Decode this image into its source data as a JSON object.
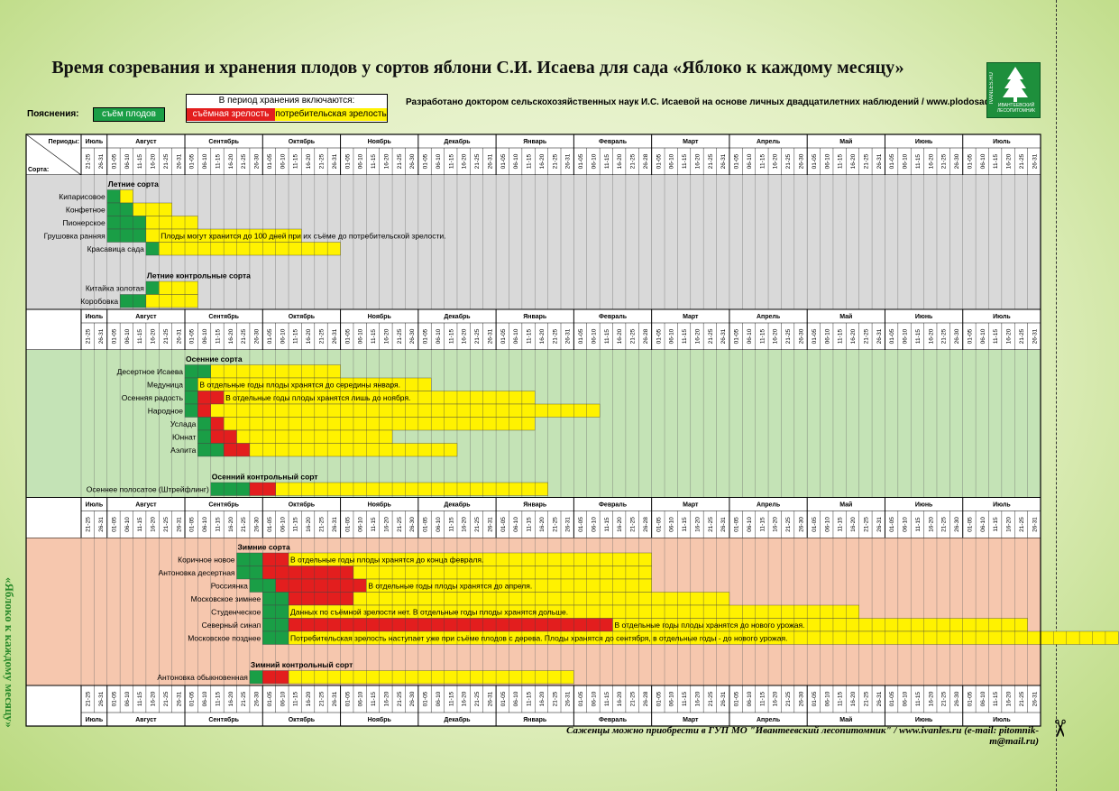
{
  "title": "Время созревания и хранения плодов у сортов яблони С.И. Исаева для сада «Яблоко к каждому месяцу»",
  "legend": {
    "caption": "Пояснения:",
    "harvest": "съём плодов",
    "storage_title": "В период хранения включаются:",
    "removable": "съёмная зрелость",
    "consumer": "потребительская зрелость"
  },
  "author_note": "Разработано доктором сельскохозяйственных наук И.С. Исаевой на основе личных двадцатилетних наблюдений / www.plodosad.ru",
  "logo": {
    "site": "IVANLES.RU",
    "name": "ИВАНТЕЕВСКИЙ ЛЕСОПИТОМНИК"
  },
  "footer": "Саженцы можно приобрести в ГУП МО \"Ивантеевский лесопитомник\" / www.ivanles.ru (e-mail: pitomnik-m@mail.ru)",
  "side_text": "«Яблоко к каждому месяцу»",
  "colors": {
    "harvest": "#1a9e46",
    "removable": "#e31e1e",
    "consumer": "#fff200",
    "summer_bg": "#d9d9d9",
    "autumn_bg": "#c4e3b6",
    "winter_bg": "#f6c7ae"
  },
  "chart_data": {
    "type": "table",
    "periods_label": "Периоды:",
    "sorts_label": "Сорта:",
    "months": [
      {
        "name": "Июль",
        "periods": [
          "21-25",
          "26-31"
        ]
      },
      {
        "name": "Август",
        "periods": [
          "01-05",
          "06-10",
          "11-15",
          "16-20",
          "21-25",
          "26-31"
        ]
      },
      {
        "name": "Сентябрь",
        "periods": [
          "01-05",
          "06-10",
          "11-15",
          "16-20",
          "21-25",
          "26-30"
        ]
      },
      {
        "name": "Октябрь",
        "periods": [
          "01-05",
          "06-10",
          "11-15",
          "16-20",
          "21-25",
          "26-31"
        ]
      },
      {
        "name": "Ноябрь",
        "periods": [
          "01-05",
          "06-10",
          "11-15",
          "16-20",
          "21-25",
          "26-30"
        ]
      },
      {
        "name": "Декабрь",
        "periods": [
          "01-05",
          "06-10",
          "11-15",
          "16-20",
          "21-25",
          "26-31"
        ]
      },
      {
        "name": "Январь",
        "periods": [
          "01-05",
          "06-10",
          "11-15",
          "16-20",
          "21-25",
          "26-31"
        ]
      },
      {
        "name": "Февраль",
        "periods": [
          "01-05",
          "06-10",
          "11-15",
          "16-20",
          "21-25",
          "26-28"
        ]
      },
      {
        "name": "Март",
        "periods": [
          "01-05",
          "06-10",
          "11-15",
          "16-20",
          "21-25",
          "26-31"
        ]
      },
      {
        "name": "Апрель",
        "periods": [
          "01-05",
          "06-10",
          "11-15",
          "16-20",
          "21-25",
          "26-30"
        ]
      },
      {
        "name": "Май",
        "periods": [
          "01-05",
          "06-10",
          "11-15",
          "16-20",
          "21-25",
          "26-31"
        ]
      },
      {
        "name": "Июнь",
        "periods": [
          "01-05",
          "06-10",
          "11-15",
          "16-20",
          "21-25",
          "26-30"
        ]
      },
      {
        "name": "Июль",
        "periods": [
          "01-05",
          "06-10",
          "11-15",
          "16-20",
          "21-25",
          "26-31"
        ]
      }
    ],
    "sections": [
      {
        "name": "summer",
        "rows": [
          {
            "type": "heading",
            "label": "Летние сорта",
            "start": 2
          },
          {
            "type": "variety",
            "name": "Кипарисовое",
            "harvest": [
              2,
              3
            ],
            "removable": null,
            "consumer": [
              3,
              4
            ]
          },
          {
            "type": "variety",
            "name": "Конфетное",
            "harvest": [
              2,
              4
            ],
            "removable": null,
            "consumer": [
              4,
              7
            ]
          },
          {
            "type": "variety",
            "name": "Пионерское",
            "harvest": [
              2,
              5
            ],
            "removable": null,
            "consumer": [
              5,
              9
            ]
          },
          {
            "type": "variety",
            "name": "Грушовка ранняя",
            "harvest": [
              2,
              5
            ],
            "removable": null,
            "consumer": [
              5,
              17
            ],
            "note": "Плоды могут хранится до 100 дней при их съёме до потребительской зрелости.",
            "note_start": 6
          },
          {
            "type": "variety",
            "name": "Красавица сада",
            "harvest": [
              5,
              6
            ],
            "removable": null,
            "consumer": [
              6,
              20
            ]
          },
          {
            "type": "blank"
          },
          {
            "type": "heading",
            "label": "Летние контрольные сорта",
            "start": 5
          },
          {
            "type": "variety",
            "name": "Китайка золотая",
            "harvest": [
              5,
              6
            ],
            "removable": null,
            "consumer": [
              6,
              9
            ]
          },
          {
            "type": "variety",
            "name": "Коробовка",
            "harvest": [
              3,
              5
            ],
            "removable": null,
            "consumer": [
              5,
              9
            ]
          }
        ]
      },
      {
        "name": "autumn",
        "rows": [
          {
            "type": "heading",
            "label": "Осенние сорта",
            "start": 8
          },
          {
            "type": "variety",
            "name": "Десертное Исаева",
            "harvest": [
              8,
              10
            ],
            "removable": null,
            "consumer": [
              10,
              20
            ]
          },
          {
            "type": "variety",
            "name": "Медуница",
            "harvest": [
              8,
              9
            ],
            "removable": null,
            "consumer": [
              9,
              27
            ],
            "note": "В отдельные годы плоды хранятся до середины января.",
            "note_start": 9
          },
          {
            "type": "variety",
            "name": "Осенняя радость",
            "harvest": [
              8,
              9
            ],
            "removable": [
              9,
              11
            ],
            "consumer": [
              11,
              35
            ],
            "note": "В отдельные годы плоды хранятся лишь до ноября.",
            "note_start": 11
          },
          {
            "type": "variety",
            "name": "Народное",
            "harvest": [
              8,
              9
            ],
            "removable": [
              9,
              10
            ],
            "consumer": [
              10,
              40
            ]
          },
          {
            "type": "variety",
            "name": "Услада",
            "harvest": [
              9,
              10
            ],
            "removable": [
              10,
              11
            ],
            "consumer": [
              11,
              35
            ]
          },
          {
            "type": "variety",
            "name": "Юннат",
            "harvest": [
              9,
              10
            ],
            "removable": [
              10,
              12
            ],
            "consumer": [
              12,
              24
            ]
          },
          {
            "type": "variety",
            "name": "Аэлита",
            "harvest": [
              9,
              11
            ],
            "removable": [
              11,
              13
            ],
            "consumer": [
              13,
              29
            ]
          },
          {
            "type": "blank"
          },
          {
            "type": "heading",
            "label": "Осенний контрольный сорт",
            "start": 10
          },
          {
            "type": "variety",
            "name": "Осеннее полосатое (Штрейфлинг)",
            "harvest": [
              10,
              13
            ],
            "removable": [
              13,
              15
            ],
            "consumer": [
              15,
              36
            ]
          }
        ]
      },
      {
        "name": "winter",
        "rows": [
          {
            "type": "heading",
            "label": "Зимние сорта",
            "start": 12
          },
          {
            "type": "variety",
            "name": "Коричное новое",
            "harvest": [
              12,
              14
            ],
            "removable": [
              14,
              16
            ],
            "consumer": [
              16,
              44
            ],
            "note": "В отдельные годы плоды хранятся до конца февраля.",
            "note_start": 16
          },
          {
            "type": "variety",
            "name": "Антоновка десертная",
            "harvest": [
              12,
              14
            ],
            "removable": [
              14,
              21
            ],
            "consumer": [
              21,
              44
            ]
          },
          {
            "type": "variety",
            "name": "Россиянка",
            "harvest": [
              13,
              15
            ],
            "removable": [
              15,
              22
            ],
            "consumer": [
              22,
              44
            ],
            "note": "В отдельные годы плоды хранятся до апреля.",
            "note_start": 22
          },
          {
            "type": "variety",
            "name": "Московское зимнее",
            "harvest": [
              14,
              16
            ],
            "removable": [
              16,
              21
            ],
            "consumer": [
              21,
              50
            ]
          },
          {
            "type": "variety",
            "name": "Студенческое",
            "harvest": [
              14,
              16
            ],
            "removable": null,
            "consumer": [
              16,
              60
            ],
            "note": "Данных по съёмной зрелости нет. В отдельные годы плоды хранятся дольше.",
            "note_start": 16
          },
          {
            "type": "variety",
            "name": "Северный синап",
            "harvest": [
              14,
              16
            ],
            "removable": [
              16,
              41
            ],
            "consumer": [
              41,
              73
            ],
            "note": "В отдельные годы плоды хранятся до нового урожая.",
            "note_start": 41
          },
          {
            "type": "variety",
            "name": "Московское позднее",
            "harvest": [
              14,
              16
            ],
            "removable": null,
            "consumer": [
              16,
              80
            ],
            "note": "Потребительская зрелость наступает уже при съёме плодов с дерева. Плоды хранятся до сентября, в отдельные годы - до нового урожая.",
            "note_start": 16
          },
          {
            "type": "blank"
          },
          {
            "type": "heading",
            "label": "Зимний контрольный сорт",
            "start": 13
          },
          {
            "type": "variety",
            "name": "Антоновка обыкновенная",
            "harvest": [
              13,
              14
            ],
            "removable": [
              14,
              16
            ],
            "consumer": [
              16,
              38
            ]
          }
        ]
      }
    ]
  }
}
